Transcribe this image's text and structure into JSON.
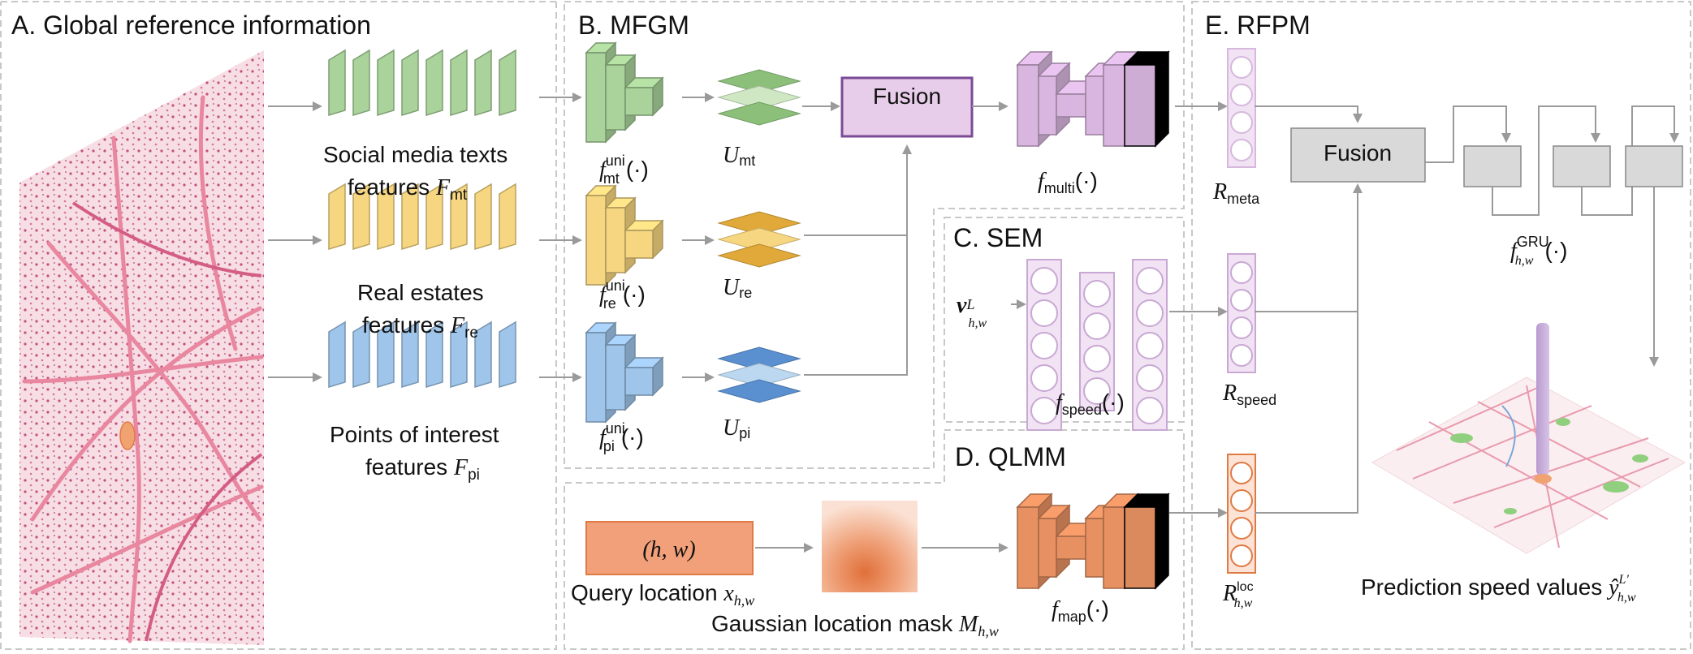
{
  "panels": {
    "A": {
      "title": "A. Global reference information"
    },
    "B": {
      "title": "B. MFGM"
    },
    "C": {
      "title": "C. SEM"
    },
    "D": {
      "title": "D. QLMM"
    },
    "E": {
      "title": "E. RFPM"
    }
  },
  "streams": {
    "mt": {
      "label_line1": "Social media texts",
      "label_line2": "features",
      "sym": "F",
      "sub": "mt",
      "f_sub": "mt",
      "U_sub": "mt"
    },
    "re": {
      "label_line1": "Real estates",
      "label_line2": "features",
      "sym": "F",
      "sub": "re",
      "f_sub": "re",
      "U_sub": "re"
    },
    "pi": {
      "label_line1": "Points of interest",
      "label_line2": "features",
      "sym": "F",
      "sub": "pi",
      "f_sub": "pi",
      "U_sub": "pi"
    }
  },
  "math": {
    "f": "f",
    "U": "U",
    "uni": "uni",
    "arg": "(·)",
    "multi": "multi",
    "speed": "speed",
    "map": "map",
    "R": "R",
    "meta": "meta",
    "speed_r": "speed",
    "loc": "loc",
    "hw": "h,w",
    "v": "v",
    "L": "L",
    "gru": "GRU",
    "x": "x",
    "M": "M",
    "y": "ŷ",
    "Lp": "L'"
  },
  "labels": {
    "fusion_b": "Fusion",
    "fusion_e": "Fusion",
    "query_box": "(h, w)",
    "query_location": "Query location",
    "gaussian_mask": "Gaussian location mask",
    "prediction": "Prediction speed values"
  },
  "colors": {
    "green": "#a9d39a",
    "yellow": "#f6d680",
    "blue": "#9fc5ea",
    "purple": "#d9b6df",
    "orange": "#e79163",
    "gray": "#d9d9d9",
    "map_pink": "#f3c6d1"
  }
}
